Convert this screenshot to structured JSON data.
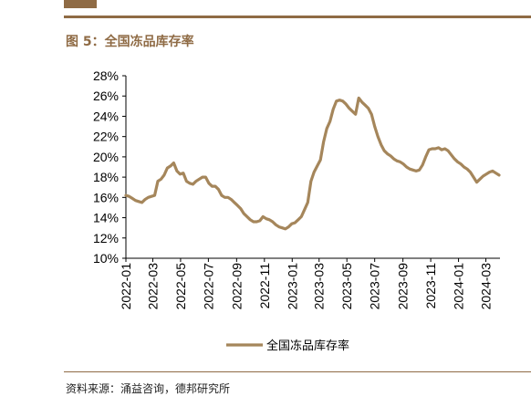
{
  "header": {
    "figure_title": "图 5：全国冻品库存率"
  },
  "footer": {
    "source": "资料来源：涌益咨询，德邦研究所"
  },
  "colors": {
    "brand": "#8f6b45",
    "series": "#a5865b",
    "axis": "#000000"
  },
  "chart_data": {
    "type": "line",
    "title": "",
    "xlabel": "",
    "ylabel": "",
    "ylim": [
      10,
      28
    ],
    "yticks": [
      10,
      12,
      14,
      16,
      18,
      20,
      22,
      24,
      26,
      28
    ],
    "ytick_labels": [
      "10%",
      "12%",
      "14%",
      "16%",
      "18%",
      "20%",
      "22%",
      "24%",
      "26%",
      "28%"
    ],
    "xlim": [
      "2022-01",
      "2024-04"
    ],
    "xtick_labels": [
      "2022-01",
      "2022-03",
      "2022-05",
      "2022-07",
      "2022-09",
      "2022-11",
      "2023-01",
      "2023-03",
      "2023-05",
      "2023-07",
      "2023-09",
      "2023-11",
      "2024-01",
      "2024-03"
    ],
    "legend": "bottom-center",
    "grid": false,
    "series": [
      {
        "name": "全国冻品库存率",
        "x": [
          "2022-01-01",
          "2022-01-08",
          "2022-01-15",
          "2022-01-22",
          "2022-01-29",
          "2022-02-05",
          "2022-02-12",
          "2022-02-19",
          "2022-02-26",
          "2022-03-05",
          "2022-03-12",
          "2022-03-19",
          "2022-03-26",
          "2022-04-02",
          "2022-04-09",
          "2022-04-16",
          "2022-04-23",
          "2022-04-30",
          "2022-05-07",
          "2022-05-14",
          "2022-05-21",
          "2022-05-28",
          "2022-06-04",
          "2022-06-11",
          "2022-06-18",
          "2022-06-25",
          "2022-07-02",
          "2022-07-09",
          "2022-07-16",
          "2022-07-23",
          "2022-07-30",
          "2022-08-06",
          "2022-08-13",
          "2022-08-20",
          "2022-08-27",
          "2022-09-03",
          "2022-09-10",
          "2022-09-17",
          "2022-09-24",
          "2022-10-01",
          "2022-10-08",
          "2022-10-15",
          "2022-10-22",
          "2022-10-29",
          "2022-11-05",
          "2022-11-12",
          "2022-11-19",
          "2022-11-26",
          "2022-12-03",
          "2022-12-10",
          "2022-12-17",
          "2022-12-24",
          "2022-12-31",
          "2023-01-07",
          "2023-01-14",
          "2023-01-21",
          "2023-01-28",
          "2023-02-04",
          "2023-02-11",
          "2023-02-18",
          "2023-02-25",
          "2023-03-04",
          "2023-03-11",
          "2023-03-18",
          "2023-03-25",
          "2023-04-01",
          "2023-04-08",
          "2023-04-15",
          "2023-04-22",
          "2023-04-29",
          "2023-05-06",
          "2023-05-13",
          "2023-05-20",
          "2023-05-27",
          "2023-06-03",
          "2023-06-10",
          "2023-06-17",
          "2023-06-24",
          "2023-07-01",
          "2023-07-08",
          "2023-07-15",
          "2023-07-22",
          "2023-07-29",
          "2023-08-05",
          "2023-08-12",
          "2023-08-19",
          "2023-08-26",
          "2023-09-02",
          "2023-09-09",
          "2023-09-16",
          "2023-09-23",
          "2023-09-30",
          "2023-10-07",
          "2023-10-14",
          "2023-10-21",
          "2023-10-28",
          "2023-11-04",
          "2023-11-11",
          "2023-11-18",
          "2023-11-25",
          "2023-12-02",
          "2023-12-09",
          "2023-12-16",
          "2023-12-23",
          "2023-12-30",
          "2024-01-06",
          "2024-01-13",
          "2024-01-20",
          "2024-01-27",
          "2024-02-03",
          "2024-02-10",
          "2024-02-17",
          "2024-02-24",
          "2024-03-02",
          "2024-03-09",
          "2024-03-16",
          "2024-03-23",
          "2024-03-30"
        ],
        "values": [
          16.2,
          16.1,
          15.9,
          15.7,
          15.6,
          15.5,
          15.8,
          16.0,
          16.1,
          16.2,
          17.6,
          17.8,
          18.2,
          18.9,
          19.1,
          19.4,
          18.6,
          18.3,
          18.4,
          17.6,
          17.4,
          17.3,
          17.6,
          17.8,
          18.0,
          18.0,
          17.4,
          17.1,
          17.1,
          16.8,
          16.2,
          16.0,
          16.0,
          15.8,
          15.5,
          15.2,
          14.9,
          14.4,
          14.1,
          13.8,
          13.6,
          13.6,
          13.7,
          14.1,
          13.9,
          13.8,
          13.6,
          13.3,
          13.1,
          13.0,
          12.9,
          13.1,
          13.4,
          13.5,
          13.8,
          14.1,
          14.8,
          15.5,
          17.6,
          18.5,
          19.1,
          19.7,
          21.5,
          22.8,
          23.5,
          24.7,
          25.5,
          25.6,
          25.5,
          25.2,
          24.8,
          24.5,
          24.2,
          25.8,
          25.4,
          25.1,
          24.8,
          24.2,
          23.0,
          22.0,
          21.2,
          20.6,
          20.3,
          20.1,
          19.8,
          19.6,
          19.5,
          19.3,
          19.0,
          18.8,
          18.7,
          18.6,
          18.7,
          19.2,
          20.0,
          20.7,
          20.8,
          20.8,
          20.9,
          20.7,
          20.8,
          20.6,
          20.2,
          19.8,
          19.5,
          19.3,
          19.0,
          18.8,
          18.5,
          18.0,
          17.5,
          17.8,
          18.1,
          18.3,
          18.5,
          18.6,
          18.4,
          18.2
        ]
      }
    ]
  }
}
